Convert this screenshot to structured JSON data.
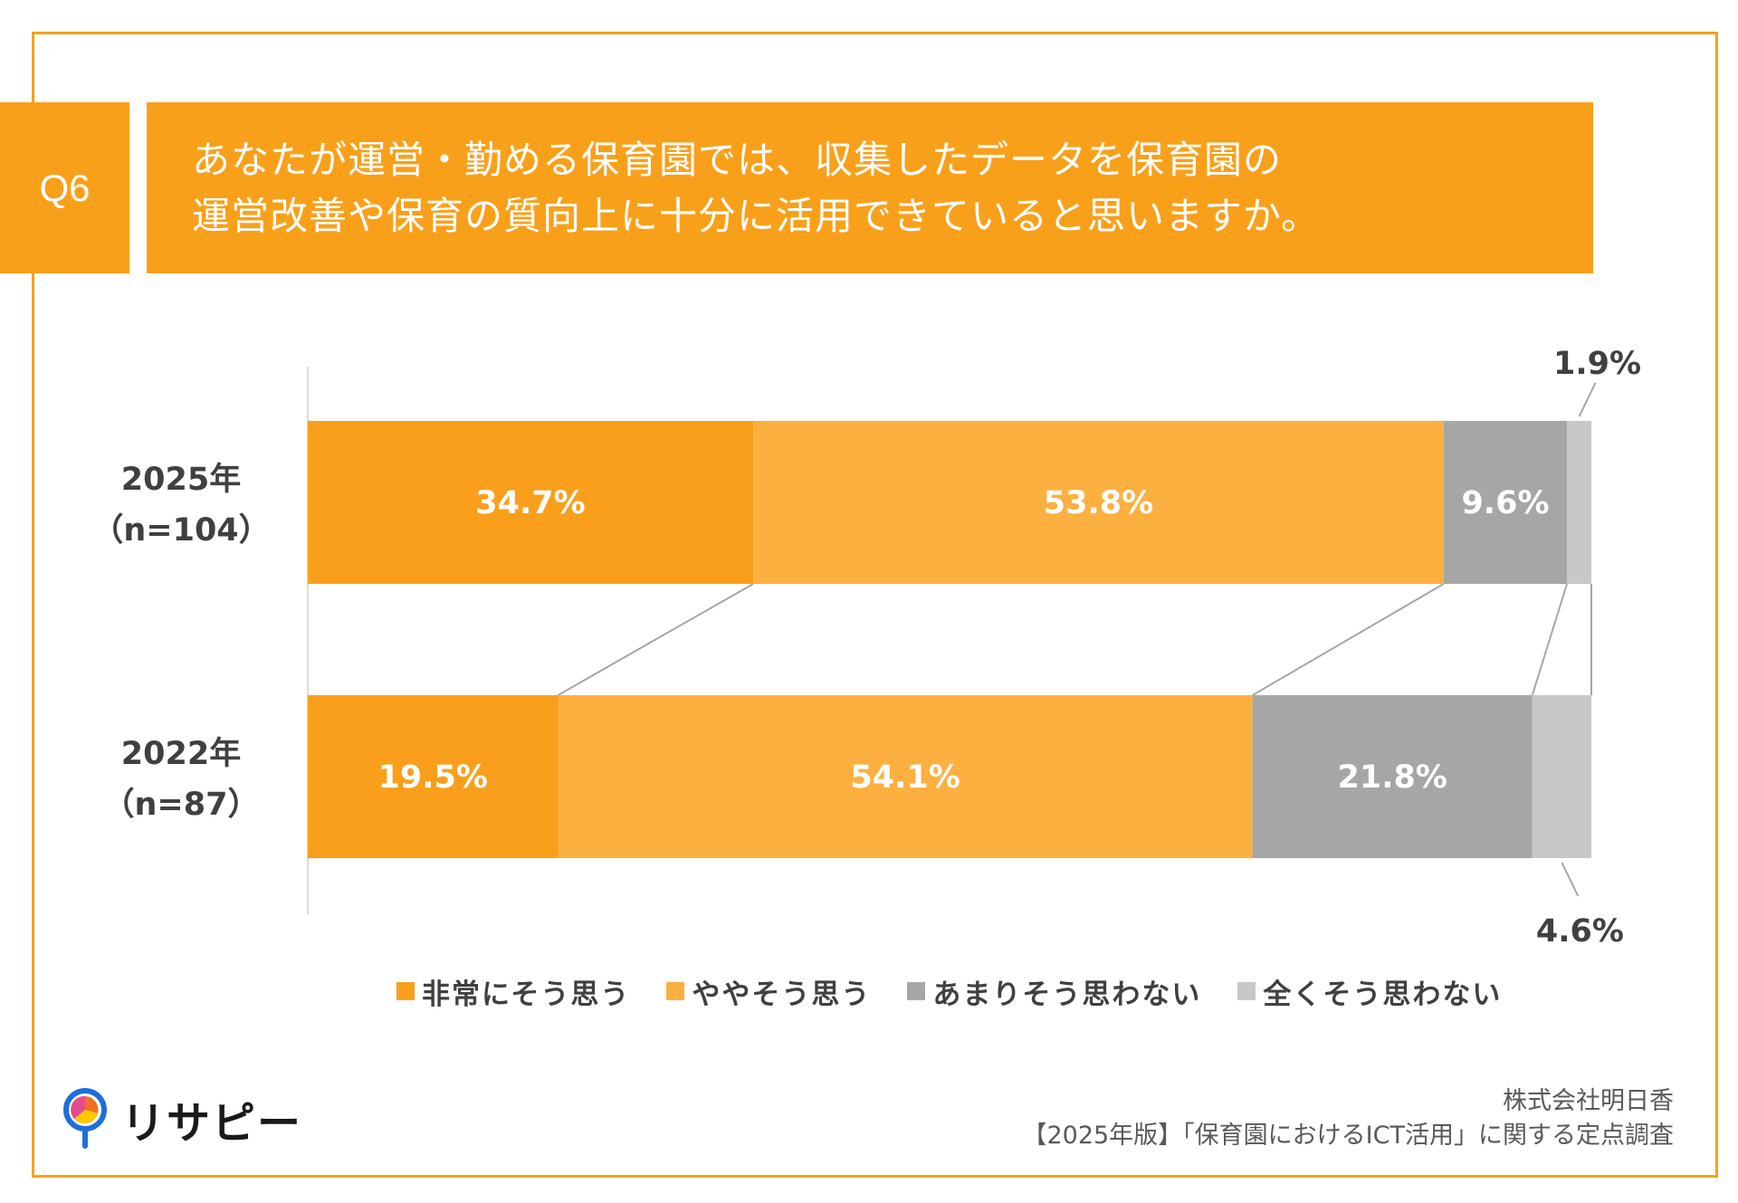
{
  "question": {
    "number": "Q6",
    "lines": [
      "あなたが運営・勤める保育園では、収集したデータを保育園の",
      "運営改善や保育の質向上に十分に活用できていると思いますか。"
    ]
  },
  "colors": {
    "accent": "#F9A01B",
    "frame": "#F4A21F",
    "strongly_agree": "#F99F1B",
    "somewhat_agree": "#FCB040",
    "somewhat_disagree": "#A6A6A6",
    "strongly_disagree": "#C8C8C8"
  },
  "chart_data": {
    "type": "bar",
    "orientation": "horizontal",
    "stacked": true,
    "normalized": true,
    "xlim": [
      0,
      100
    ],
    "categories": [
      {
        "label": "2025年",
        "sub": "（n=104）"
      },
      {
        "label": "2022年",
        "sub": "（n=87）"
      }
    ],
    "series": [
      {
        "name": "非常にそう思う",
        "color": "#F99F1B",
        "values": [
          34.7,
          19.5
        ],
        "labels": [
          "34.7%",
          "19.5%"
        ]
      },
      {
        "name": "ややそう思う",
        "color": "#FCB040",
        "values": [
          53.8,
          54.1
        ],
        "labels": [
          "53.8%",
          "54.1%"
        ]
      },
      {
        "name": "あまりそう思わない",
        "color": "#A6A6A6",
        "values": [
          9.6,
          21.8
        ],
        "labels": [
          "9.6%",
          "21.8%"
        ]
      },
      {
        "name": "全くそう思わない",
        "color": "#C8C8C8",
        "values": [
          1.9,
          4.6
        ],
        "labels": [
          "1.9%",
          "4.6%"
        ]
      }
    ],
    "legend_position": "bottom",
    "grid": false,
    "connector_lines": true
  },
  "footer": {
    "logo_text": "リサピー",
    "company": "株式会社明日香",
    "survey": "【2025年版】「保育園におけるICT活用」に関する定点調査"
  }
}
